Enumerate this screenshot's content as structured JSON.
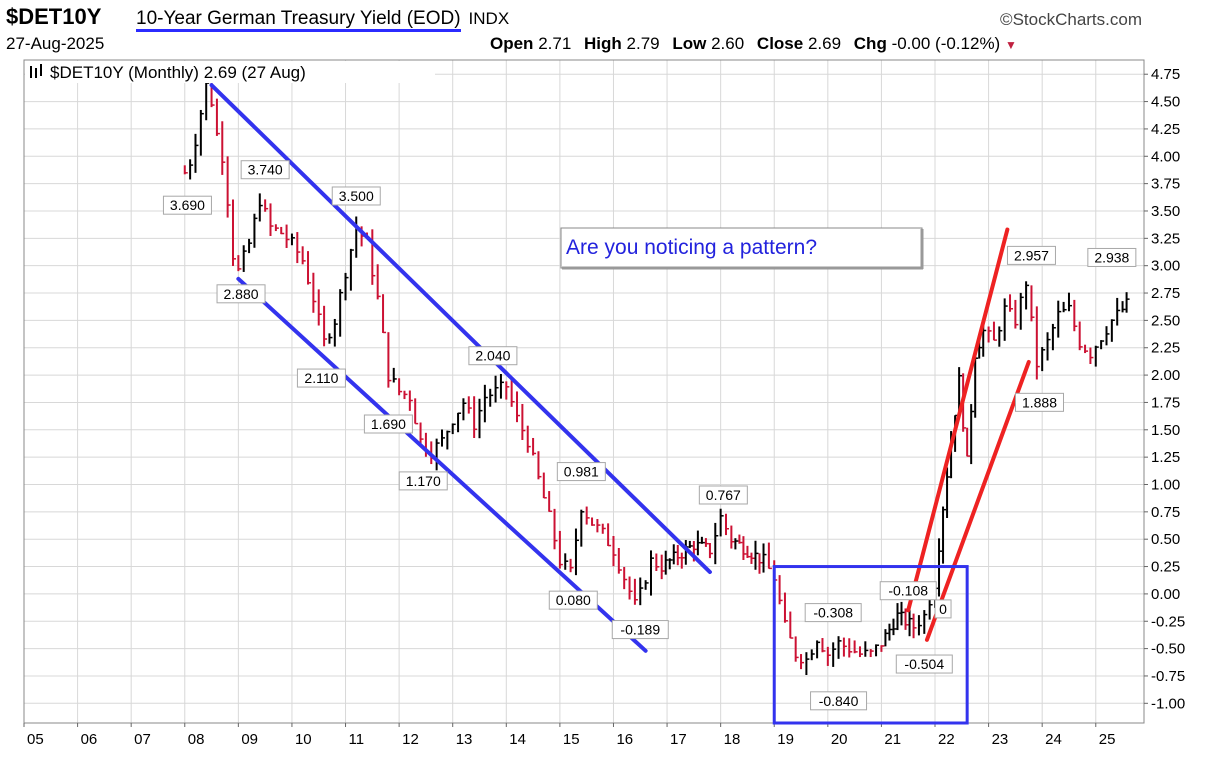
{
  "header": {
    "symbol": "$DET10Y",
    "title": "10-Year German Treasury Yield (EOD)",
    "exchange": "INDX",
    "brand": "©StockCharts.com",
    "date": "27-Aug-2025",
    "open_label": "Open",
    "open": "2.71",
    "high_label": "High",
    "high": "2.79",
    "low_label": "Low",
    "low": "2.60",
    "close_label": "Close",
    "close": "2.69",
    "chg_label": "Chg",
    "chg": "-0.00 (-0.12%)",
    "chg_icon": "triangle-down-icon"
  },
  "legend": {
    "icon": "bar-chart-icon",
    "text": "$DET10Y (Monthly) 2.69 (27 Aug)"
  },
  "callout_text": "Are you noticing a pattern?",
  "colors": {
    "up": "#000000",
    "down": "#cc1133",
    "channel": "#3333ee",
    "trend": "#ee2222",
    "callout_text": "#2222dd"
  },
  "chart_data": {
    "type": "bar",
    "interval": "monthly",
    "x_tick_labels": [
      "05",
      "06",
      "07",
      "08",
      "09",
      "10",
      "11",
      "12",
      "13",
      "14",
      "15",
      "16",
      "17",
      "18",
      "19",
      "20",
      "21",
      "22",
      "23",
      "24",
      "25"
    ],
    "x_range": [
      2005,
      2025.9
    ],
    "y_tick_labels": [
      "4.75",
      "4.50",
      "4.25",
      "4.00",
      "3.75",
      "3.50",
      "3.25",
      "3.00",
      "2.75",
      "2.50",
      "2.25",
      "2.00",
      "1.75",
      "1.50",
      "1.25",
      "1.00",
      "0.75",
      "0.50",
      "0.25",
      "0.00",
      "-0.25",
      "-0.50",
      "-0.75",
      "-1.00"
    ],
    "y_range": [
      -1.18,
      4.88
    ],
    "grid": true,
    "y_axis_side": "right",
    "series": [
      {
        "x": [
          2008.0,
          2008.1,
          2008.2,
          2008.3,
          2008.4,
          2008.5,
          2008.6,
          2008.7,
          2008.8,
          2008.9,
          2009.0,
          2009.2,
          2009.4,
          2009.6,
          2009.8,
          2010.0,
          2010.2,
          2010.4,
          2010.6,
          2010.8,
          2011.0,
          2011.2,
          2011.4,
          2011.6,
          2011.8,
          2012.0,
          2012.2,
          2012.4,
          2012.6,
          2012.8,
          2013.0,
          2013.2,
          2013.4,
          2013.6,
          2013.8,
          2014.0,
          2014.2,
          2014.4,
          2014.6,
          2014.8,
          2015.0,
          2015.2,
          2015.4,
          2015.6,
          2015.8,
          2016.0,
          2016.2,
          2016.4,
          2016.5,
          2016.7,
          2016.9,
          2017.2,
          2017.5,
          2017.8,
          2018.0,
          2018.2,
          2018.5,
          2018.8,
          2019.0,
          2019.2,
          2019.4,
          2019.6,
          2019.8,
          2020.0,
          2020.2,
          2020.4,
          2020.6,
          2020.8,
          2021.0,
          2021.3,
          2021.6,
          2021.8,
          2022.0,
          2022.15,
          2022.3,
          2022.45,
          2022.6,
          2022.75,
          2022.9,
          2023.1,
          2023.3,
          2023.5,
          2023.7,
          2023.9,
          2024.1,
          2024.3,
          2024.5,
          2024.7,
          2024.9,
          2025.1,
          2025.3,
          2025.5,
          2025.65
        ],
        "y": [
          3.85,
          3.95,
          4.15,
          4.4,
          4.65,
          4.5,
          4.2,
          4.0,
          3.6,
          3.1,
          2.95,
          3.2,
          3.6,
          3.35,
          3.3,
          3.2,
          3.05,
          2.7,
          2.3,
          2.5,
          2.95,
          3.35,
          3.2,
          2.7,
          2.0,
          1.85,
          1.8,
          1.4,
          1.3,
          1.4,
          1.6,
          1.75,
          1.55,
          1.8,
          1.85,
          1.9,
          1.6,
          1.4,
          1.05,
          0.7,
          0.3,
          0.2,
          0.8,
          0.65,
          0.55,
          0.4,
          0.15,
          -0.1,
          0.0,
          0.3,
          0.25,
          0.35,
          0.45,
          0.4,
          0.7,
          0.5,
          0.4,
          0.3,
          0.15,
          -0.3,
          -0.55,
          -0.6,
          -0.4,
          -0.55,
          -0.45,
          -0.5,
          -0.55,
          -0.55,
          -0.45,
          -0.2,
          -0.3,
          -0.2,
          0.1,
          0.8,
          1.4,
          1.95,
          1.2,
          2.2,
          2.4,
          2.3,
          2.6,
          2.5,
          2.85,
          2.1,
          2.3,
          2.55,
          2.6,
          2.3,
          2.2,
          2.35,
          2.5,
          2.6,
          2.69
        ]
      }
    ],
    "annotations": [
      {
        "label": "3.690",
        "x": 2008.05,
        "y": 3.69
      },
      {
        "label": "3.740",
        "x": 2009.5,
        "y": 3.74
      },
      {
        "label": "3.500",
        "x": 2011.2,
        "y": 3.5
      },
      {
        "label": "2.880",
        "x": 2009.05,
        "y": 2.88
      },
      {
        "label": "2.110",
        "x": 2010.55,
        "y": 2.11
      },
      {
        "label": "2.040",
        "x": 2013.75,
        "y": 2.04
      },
      {
        "label": "1.690",
        "x": 2011.8,
        "y": 1.69
      },
      {
        "label": "1.170",
        "x": 2012.45,
        "y": 1.17
      },
      {
        "label": "0.981",
        "x": 2015.4,
        "y": 0.981
      },
      {
        "label": "0.080",
        "x": 2015.25,
        "y": 0.08
      },
      {
        "label": "-0.189",
        "x": 2016.5,
        "y": -0.189
      },
      {
        "label": "0.767",
        "x": 2018.05,
        "y": 0.767
      },
      {
        "label": "-0.308",
        "x": 2020.1,
        "y": -0.308
      },
      {
        "label": "-0.840",
        "x": 2020.2,
        "y": -0.84
      },
      {
        "label": "-0.108",
        "x": 2021.5,
        "y": -0.108
      },
      {
        "label": "-0.504",
        "x": 2021.8,
        "y": -0.504
      },
      {
        "label": "0",
        "x": 2022.15,
        "y": 0.0
      },
      {
        "label": "2.957",
        "x": 2023.8,
        "y": 2.957
      },
      {
        "label": "1.888",
        "x": 2023.95,
        "y": 1.888
      },
      {
        "label": "2.938",
        "x": 2025.3,
        "y": 2.938
      }
    ],
    "drawn_lines": [
      {
        "role": "channel-upper",
        "color": "blue",
        "from": [
          2008.5,
          4.65
        ],
        "to": [
          2017.8,
          0.2
        ]
      },
      {
        "role": "channel-lower",
        "color": "blue",
        "from": [
          2009.0,
          2.88
        ],
        "to": [
          2016.6,
          -0.52
        ]
      },
      {
        "role": "trend-upper",
        "color": "red",
        "from": [
          2021.5,
          -0.15
        ],
        "to": [
          2023.35,
          3.33
        ]
      },
      {
        "role": "trend-lower",
        "color": "red",
        "from": [
          2021.85,
          -0.42
        ],
        "to": [
          2023.75,
          2.12
        ]
      }
    ],
    "drawn_box": {
      "x_range": [
        2019.0,
        2022.6
      ],
      "y_range": [
        -1.18,
        0.25
      ],
      "color": "blue"
    }
  }
}
